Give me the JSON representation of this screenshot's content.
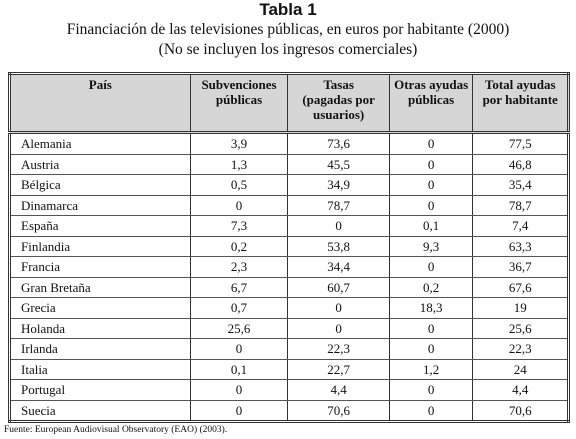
{
  "header": {
    "title": "Tabla 1",
    "subtitle_lines": [
      "Financiación de las televisiones públicas, en euros por habitante (2000)",
      "(No se incluyen los ingresos comerciales)"
    ]
  },
  "table": {
    "columns": [
      [
        "País"
      ],
      [
        "Subvenciones",
        "públicas"
      ],
      [
        "Tasas",
        "(pagadas por",
        "usuarios)"
      ],
      [
        "Otras ayudas",
        "públicas"
      ],
      [
        "Total ayudas",
        "por habitante"
      ]
    ],
    "rows": [
      [
        "Alemania",
        "3,9",
        "73,6",
        "0",
        "77,5"
      ],
      [
        "Austria",
        "1,3",
        "45,5",
        "0",
        "46,8"
      ],
      [
        "Bélgica",
        "0,5",
        "34,9",
        "0",
        "35,4"
      ],
      [
        "Dinamarca",
        "0",
        "78,7",
        "0",
        "78,7"
      ],
      [
        "España",
        "7,3",
        "0",
        "0,1",
        "7,4"
      ],
      [
        "Finlandia",
        "0,2",
        "53,8",
        "9,3",
        "63,3"
      ],
      [
        "Francia",
        "2,3",
        "34,4",
        "0",
        "36,7"
      ],
      [
        "Gran Bretaña",
        "6,7",
        "60,7",
        "0,2",
        "67,6"
      ],
      [
        "Grecia",
        "0,7",
        "0",
        "18,3",
        "19"
      ],
      [
        "Holanda",
        "25,6",
        "0",
        "0",
        "25,6"
      ],
      [
        "Irlanda",
        "0",
        "22,3",
        "0",
        "22,3"
      ],
      [
        "Italia",
        "0,1",
        "22,7",
        "1,2",
        "24"
      ],
      [
        "Portugal",
        "0",
        "4,4",
        "0",
        "4,4"
      ],
      [
        "Suecia",
        "0",
        "70,6",
        "0",
        "70,6"
      ]
    ]
  },
  "source": "Fuente: European Audiovisual Observatory (EAO) (2003)."
}
